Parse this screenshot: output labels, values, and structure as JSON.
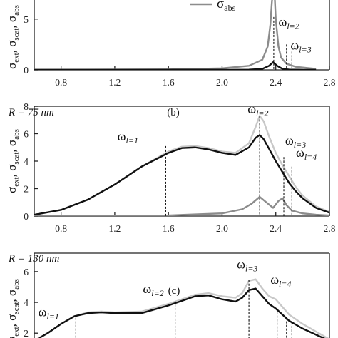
{
  "legend": {
    "label": "σ",
    "sub": "abs",
    "color": "#8c8c8c"
  },
  "chart_data": [
    {
      "type": "line",
      "panel": "(a)",
      "xlim": [
        0.6,
        2.8
      ],
      "ylim": [
        0,
        8
      ],
      "xticks": [
        0.8,
        1.2,
        1.6,
        2.0,
        2.4,
        2.8
      ],
      "yticks": [
        0,
        5
      ],
      "xtick_labels": [
        "0.8",
        "1.2",
        "1.6",
        "2.0",
        "2.4",
        "2.8"
      ],
      "ytick_labels": [
        "0",
        "5"
      ],
      "ylabel": {
        "sigma": "σ",
        "parts": [
          "ext",
          "scat",
          "abs"
        ]
      },
      "series": [
        {
          "name": "σabs",
          "color": "#8c8c8c",
          "x": [
            0.6,
            1.6,
            2.0,
            2.2,
            2.3,
            2.34,
            2.36,
            2.37,
            2.38,
            2.385,
            2.39,
            2.4,
            2.42,
            2.44,
            2.48,
            2.55,
            2.7
          ],
          "y": [
            0.02,
            0.05,
            0.15,
            0.4,
            1.0,
            2.3,
            4.5,
            6.5,
            8.0,
            8.5,
            7.8,
            5.0,
            2.3,
            1.2,
            0.6,
            0.3,
            0.1
          ]
        },
        {
          "color": "#111111",
          "x": [
            0.6,
            2.2,
            2.3,
            2.35,
            2.38,
            2.41,
            2.45,
            2.5,
            2.7
          ],
          "y": [
            0.0,
            0.02,
            0.1,
            0.4,
            0.75,
            0.4,
            0.1,
            0.03,
            0.0
          ]
        }
      ],
      "markers": [
        {
          "label": "ω",
          "sub": "l=2",
          "x": 2.385,
          "y_top": 5.2,
          "label_x": 2.42,
          "label_y": 4.3
        },
        {
          "label": "ω",
          "sub": "l=3",
          "x": 2.48,
          "y_top": 2.5,
          "label_x": 2.51,
          "label_y": 2.0
        },
        {
          "x": 2.52,
          "y_top": 1.8
        }
      ]
    },
    {
      "type": "line",
      "panel": "(b)",
      "radius_label": "R = 75 nm",
      "xlim": [
        0.6,
        2.8
      ],
      "ylim": [
        0,
        8
      ],
      "xticks": [
        0.8,
        1.2,
        1.6,
        2.0,
        2.4,
        2.8
      ],
      "yticks": [
        0,
        2,
        4,
        6,
        8
      ],
      "xtick_labels": [
        "0.8",
        "1.2",
        "1.6",
        "2.0",
        "2.4",
        "2.8"
      ],
      "ytick_labels": [
        "0",
        "2",
        "4",
        "6",
        "8"
      ],
      "ylabel": {
        "sigma": "σ",
        "parts": [
          "ext",
          "scat",
          "abs"
        ]
      },
      "series": [
        {
          "color": "#c8c8c8",
          "x": [
            0.6,
            0.8,
            1.0,
            1.2,
            1.4,
            1.6,
            1.7,
            1.8,
            1.9,
            2.0,
            2.1,
            2.2,
            2.25,
            2.28,
            2.31,
            2.35,
            2.4,
            2.45,
            2.5,
            2.55,
            2.6,
            2.7,
            2.8
          ],
          "y": [
            0.1,
            0.45,
            1.2,
            2.3,
            3.6,
            4.7,
            5.05,
            5.1,
            4.95,
            4.7,
            4.6,
            5.3,
            6.5,
            7.3,
            6.9,
            5.8,
            4.6,
            3.7,
            2.9,
            2.1,
            1.5,
            0.7,
            0.3
          ]
        },
        {
          "color": "#111111",
          "x": [
            0.6,
            0.8,
            1.0,
            1.2,
            1.4,
            1.6,
            1.7,
            1.8,
            1.9,
            2.0,
            2.1,
            2.2,
            2.25,
            2.28,
            2.31,
            2.35,
            2.4,
            2.45,
            2.5,
            2.55,
            2.6,
            2.7,
            2.8
          ],
          "y": [
            0.1,
            0.45,
            1.2,
            2.3,
            3.6,
            4.6,
            4.95,
            5.0,
            4.85,
            4.6,
            4.45,
            5.0,
            5.7,
            5.9,
            5.6,
            4.9,
            4.0,
            3.2,
            2.4,
            1.8,
            1.3,
            0.6,
            0.25
          ]
        },
        {
          "color": "#8c8c8c",
          "x": [
            0.6,
            1.6,
            2.0,
            2.15,
            2.22,
            2.28,
            2.33,
            2.38,
            2.42,
            2.45,
            2.48,
            2.52,
            2.6,
            2.7,
            2.8
          ],
          "y": [
            0.0,
            0.05,
            0.2,
            0.5,
            0.9,
            1.4,
            1.0,
            0.6,
            1.1,
            1.3,
            0.8,
            0.4,
            0.2,
            0.1,
            0.05
          ]
        }
      ],
      "markers": [
        {
          "label": "ω",
          "sub": "l=1",
          "x": 1.58,
          "y_top": 5.1,
          "label_x": 1.22,
          "label_y": 5.5
        },
        {
          "label": "ω",
          "sub": "l=2",
          "x": 2.28,
          "y_top": 7.3,
          "label_x": 2.19,
          "label_y": 7.5
        },
        {
          "label": "ω",
          "sub": "l=3",
          "x": 2.46,
          "y_top": 4.3,
          "label_x": 2.47,
          "label_y": 5.2
        },
        {
          "label": "ω",
          "sub": "l=4",
          "x": 2.52,
          "y_top": 3.6,
          "label_x": 2.55,
          "label_y": 4.3
        }
      ]
    },
    {
      "type": "line",
      "panel": "(c)",
      "radius_label": "R = 130 nm",
      "xlim": [
        0.6,
        2.8
      ],
      "ylim": [
        1.5,
        7.2
      ],
      "yticks": [
        2,
        4,
        6
      ],
      "ytick_labels": [
        "2",
        "4",
        "6"
      ],
      "ylabel": {
        "sigma": "σ",
        "parts": [
          "ext",
          "scat",
          "abs"
        ]
      },
      "series": [
        {
          "color": "#c8c8c8",
          "x": [
            0.6,
            0.7,
            0.8,
            0.9,
            1.0,
            1.1,
            1.2,
            1.4,
            1.6,
            1.8,
            1.9,
            2.0,
            2.1,
            2.15,
            2.2,
            2.25,
            2.3,
            2.35,
            2.4,
            2.45,
            2.5,
            2.6,
            2.7,
            2.8
          ],
          "y": [
            1.5,
            2.0,
            2.6,
            3.1,
            3.35,
            3.4,
            3.35,
            3.4,
            3.9,
            4.5,
            4.6,
            4.4,
            4.3,
            4.6,
            5.4,
            5.5,
            4.9,
            4.4,
            4.2,
            3.7,
            3.2,
            2.6,
            2.1,
            1.6
          ]
        },
        {
          "color": "#111111",
          "x": [
            0.6,
            0.7,
            0.8,
            0.9,
            1.0,
            1.1,
            1.2,
            1.4,
            1.6,
            1.8,
            1.9,
            2.0,
            2.1,
            2.15,
            2.2,
            2.25,
            2.3,
            2.35,
            2.4,
            2.45,
            2.5,
            2.6,
            2.7,
            2.8
          ],
          "y": [
            1.5,
            2.0,
            2.6,
            3.1,
            3.3,
            3.35,
            3.3,
            3.3,
            3.8,
            4.4,
            4.45,
            4.2,
            4.05,
            4.3,
            4.8,
            4.9,
            4.4,
            3.9,
            3.6,
            3.2,
            2.8,
            2.3,
            1.9,
            1.5
          ]
        }
      ],
      "markers": [
        {
          "label": "ω",
          "sub": "l=1",
          "x": 0.91,
          "y_top": 3.0,
          "label_x": 0.63,
          "label_y": 3.1
        },
        {
          "label": "ω",
          "sub": "l=2",
          "x": 1.65,
          "y_top": 4.1,
          "label_x": 1.41,
          "label_y": 4.6
        },
        {
          "label": "ω",
          "sub": "l=3",
          "x": 2.2,
          "y_top": 5.45,
          "label_x": 2.11,
          "label_y": 6.2
        },
        {
          "label": "ω",
          "sub": "l=4",
          "x": 2.41,
          "y_top": 3.6,
          "label_x": 2.36,
          "label_y": 5.2
        },
        {
          "x": 2.48,
          "y_top": 3.0
        },
        {
          "x": 2.52,
          "y_top": 2.7
        }
      ]
    }
  ]
}
